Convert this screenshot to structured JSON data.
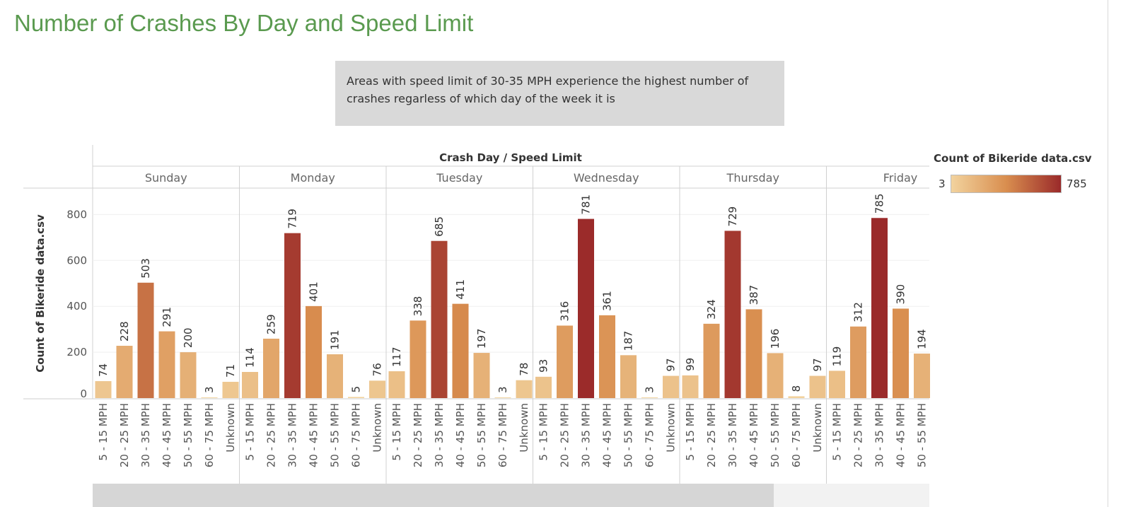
{
  "title": "Number of Crashes By Day and Speed Limit",
  "annotation": "Areas with speed limit of 30-35 MPH experience the highest number of crashes regarless of which day of the week it is",
  "legend": {
    "title": "Count of Bikeride data.csv",
    "min": "3",
    "max": "785",
    "min_color": "#f2d39e",
    "mid_color": "#d98e4f",
    "max_color": "#9a2a2a"
  },
  "colors": {
    "scrollbar_thumb": "#d6d6d6",
    "scrollbar_track": "#f2f2f2",
    "title": "#5a9a4f"
  },
  "chart_data": {
    "type": "bar",
    "title": "Crash Day / Speed Limit",
    "xlabel": "Crash Day / Speed Limit",
    "ylabel": "Count of Bikeride data.csv",
    "ylim": [
      0,
      900
    ],
    "yticks": [
      0,
      200,
      400,
      600,
      800
    ],
    "color_range": [
      3,
      785
    ],
    "panels": [
      {
        "day": "Sunday",
        "categories": [
          "5 - 15 MPH",
          "20 - 25 MPH",
          "30 - 35 MPH",
          "40 - 45 MPH",
          "50 - 55 MPH",
          "60 - 75 MPH",
          "Unknown"
        ],
        "values": [
          74,
          228,
          503,
          291,
          200,
          3,
          71
        ]
      },
      {
        "day": "Monday",
        "categories": [
          "5 - 15 MPH",
          "20 - 25 MPH",
          "30 - 35 MPH",
          "40 - 45 MPH",
          "50 - 55 MPH",
          "60 - 75 MPH",
          "Unknown"
        ],
        "values": [
          114,
          259,
          719,
          401,
          191,
          5,
          76
        ]
      },
      {
        "day": "Tuesday",
        "categories": [
          "5 - 15 MPH",
          "20 - 25 MPH",
          "30 - 35 MPH",
          "40 - 45 MPH",
          "50 - 55 MPH",
          "60 - 75 MPH",
          "Unknown"
        ],
        "values": [
          117,
          338,
          685,
          411,
          197,
          3,
          78
        ]
      },
      {
        "day": "Wednesday",
        "categories": [
          "5 - 15 MPH",
          "20 - 25 MPH",
          "30 - 35 MPH",
          "40 - 45 MPH",
          "50 - 55 MPH",
          "60 - 75 MPH",
          "Unknown"
        ],
        "values": [
          93,
          316,
          781,
          361,
          187,
          3,
          97
        ]
      },
      {
        "day": "Thursday",
        "categories": [
          "5 - 15 MPH",
          "20 - 25 MPH",
          "30 - 35 MPH",
          "40 - 45 MPH",
          "50 - 55 MPH",
          "60 - 75 MPH",
          "Unknown"
        ],
        "values": [
          99,
          324,
          729,
          387,
          196,
          8,
          97
        ]
      },
      {
        "day": "Friday",
        "categories": [
          "5 - 15 MPH",
          "20 - 25 MPH",
          "30 - 35 MPH",
          "40 - 45 MPH",
          "50 - 55 MPH"
        ],
        "values": [
          119,
          312,
          785,
          390,
          194
        ]
      }
    ]
  }
}
